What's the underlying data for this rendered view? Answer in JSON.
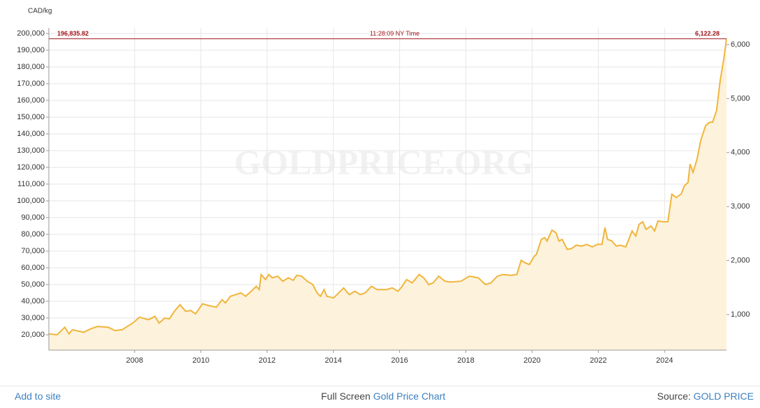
{
  "chart_data": {
    "type": "line",
    "y_unit": "CAD/kg",
    "watermark": "GOLDPRICE.ORG",
    "x": [
      2005.41,
      2005.66,
      2005.89,
      2006.02,
      2006.12,
      2006.46,
      2006.67,
      2006.88,
      2007.2,
      2007.41,
      2007.62,
      2007.94,
      2008.15,
      2008.42,
      2008.61,
      2008.74,
      2008.91,
      2009.05,
      2009.2,
      2009.37,
      2009.54,
      2009.69,
      2009.84,
      2010.05,
      2010.22,
      2010.47,
      2010.64,
      2010.74,
      2010.89,
      2011.21,
      2011.35,
      2011.52,
      2011.67,
      2011.76,
      2011.82,
      2011.95,
      2012.05,
      2012.16,
      2012.32,
      2012.47,
      2012.64,
      2012.79,
      2012.89,
      2013.04,
      2013.21,
      2013.38,
      2013.51,
      2013.61,
      2013.72,
      2013.8,
      2014.01,
      2014.31,
      2014.48,
      2014.65,
      2014.81,
      2014.96,
      2015.15,
      2015.32,
      2015.6,
      2015.78,
      2015.95,
      2016.06,
      2016.21,
      2016.38,
      2016.59,
      2016.73,
      2016.88,
      2017.01,
      2017.18,
      2017.37,
      2017.54,
      2017.85,
      2018.11,
      2018.38,
      2018.59,
      2018.76,
      2018.95,
      2019.12,
      2019.37,
      2019.54,
      2019.67,
      2019.79,
      2019.92,
      2020.07,
      2020.13,
      2020.28,
      2020.38,
      2020.45,
      2020.6,
      2020.72,
      2020.81,
      2020.91,
      2021.06,
      2021.19,
      2021.33,
      2021.5,
      2021.65,
      2021.82,
      2021.97,
      2022.11,
      2022.2,
      2022.28,
      2022.41,
      2022.54,
      2022.66,
      2022.83,
      2023.02,
      2023.13,
      2023.23,
      2023.34,
      2023.44,
      2023.59,
      2023.7,
      2023.8,
      2023.97,
      2024.1,
      2024.22,
      2024.35,
      2024.5,
      2024.6,
      2024.71,
      2024.77,
      2024.86,
      2024.98,
      2025.09,
      2025.24,
      2025.36,
      2025.45,
      2025.57,
      2025.68,
      2025.79,
      2025.87
    ],
    "series": [
      {
        "name": "Gold",
        "color": "#f0b53c",
        "fill": "#fdf2dc",
        "values": [
          20500,
          20000,
          24500,
          20500,
          23000,
          21500,
          23500,
          25000,
          24500,
          22500,
          23000,
          27000,
          30500,
          29000,
          31000,
          27000,
          30000,
          29500,
          34000,
          38000,
          34000,
          34500,
          32500,
          38500,
          37500,
          36500,
          41000,
          39000,
          43000,
          45000,
          43000,
          46000,
          49000,
          47000,
          56000,
          53000,
          56000,
          54000,
          55000,
          52000,
          54000,
          52500,
          55500,
          55000,
          52000,
          50000,
          45000,
          43000,
          47000,
          43000,
          42000,
          48000,
          44000,
          46000,
          44000,
          45000,
          49000,
          47000,
          47000,
          48000,
          46000,
          48500,
          53000,
          51000,
          56000,
          54000,
          50000,
          51000,
          55000,
          52000,
          51500,
          52000,
          55000,
          54000,
          50000,
          51000,
          55000,
          56000,
          55500,
          56000,
          64500,
          63000,
          62000,
          67000,
          68000,
          77000,
          78000,
          76000,
          82500,
          81000,
          76000,
          77000,
          71000,
          71500,
          73500,
          73000,
          74000,
          72500,
          74000,
          74000,
          84000,
          77000,
          76000,
          73000,
          73500,
          72500,
          82000,
          79000,
          86000,
          87500,
          83000,
          85000,
          82000,
          88000,
          87500,
          87500,
          104000,
          102000,
          104000,
          109000,
          111000,
          122000,
          117000,
          125000,
          136000,
          145000,
          147000,
          147000,
          154000,
          172000,
          185000,
          196835.82
        ]
      }
    ],
    "current": {
      "value": 196835.82,
      "label": "196,835.82",
      "value_y2": 6122.28,
      "label_y2": "6,122.28",
      "time": "11:28:09 NY Time",
      "color": "#a3141b"
    },
    "xlim": [
      2005.41,
      2025.87
    ],
    "xticks": [
      2008,
      2010,
      2012,
      2014,
      2016,
      2018,
      2020,
      2022,
      2024
    ],
    "ylim": [
      10833,
      203333
    ],
    "yticks": [
      {
        "value": 20000,
        "label": "20,000"
      },
      {
        "value": 30000,
        "label": "30,000"
      },
      {
        "value": 40000,
        "label": "40,000"
      },
      {
        "value": 50000,
        "label": "50,000"
      },
      {
        "value": 60000,
        "label": "60,000"
      },
      {
        "value": 70000,
        "label": "70,000"
      },
      {
        "value": 80000,
        "label": "80,000"
      },
      {
        "value": 90000,
        "label": "90,000"
      },
      {
        "value": 100000,
        "label": "100,000"
      },
      {
        "value": 110000,
        "label": "110,000"
      },
      {
        "value": 120000,
        "label": "120,000"
      },
      {
        "value": 130000,
        "label": "130,000"
      },
      {
        "value": 140000,
        "label": "140,000"
      },
      {
        "value": 150000,
        "label": "150,000"
      },
      {
        "value": 160000,
        "label": "160,000"
      },
      {
        "value": 170000,
        "label": "170,000"
      },
      {
        "value": 180000,
        "label": "180,000"
      },
      {
        "value": 190000,
        "label": "190,000"
      },
      {
        "value": 200000,
        "label": "200,000"
      }
    ],
    "y2lim": [
      341,
      6310
    ],
    "y2ticks": [
      {
        "value": 1000,
        "label": "1,000"
      },
      {
        "value": 2000,
        "label": "2,000"
      },
      {
        "value": 3000,
        "label": "3,000"
      },
      {
        "value": 4000,
        "label": "4,000"
      },
      {
        "value": 5000,
        "label": "5,000"
      },
      {
        "value": 6000,
        "label": "6,000"
      }
    ],
    "grid": true
  },
  "footer": {
    "add": "Add to site",
    "fullscreen": "Full Screen",
    "chart_link": "Gold Price Chart",
    "source": "Source:",
    "source_link": "GOLD PRICE"
  }
}
